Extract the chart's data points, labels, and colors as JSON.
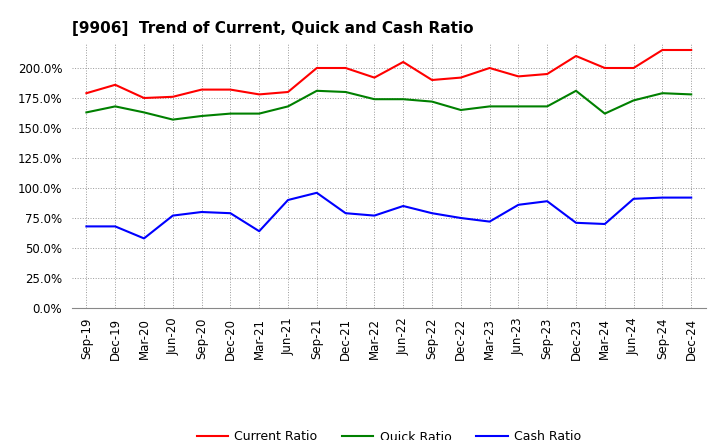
{
  "title": "[9906]  Trend of Current, Quick and Cash Ratio",
  "x_labels": [
    "Sep-19",
    "Dec-19",
    "Mar-20",
    "Jun-20",
    "Sep-20",
    "Dec-20",
    "Mar-21",
    "Jun-21",
    "Sep-21",
    "Dec-21",
    "Mar-22",
    "Jun-22",
    "Sep-22",
    "Dec-22",
    "Mar-23",
    "Jun-23",
    "Sep-23",
    "Dec-23",
    "Mar-24",
    "Jun-24",
    "Sep-24",
    "Dec-24"
  ],
  "current_ratio": [
    179,
    186,
    175,
    176,
    182,
    182,
    178,
    180,
    200,
    200,
    192,
    205,
    190,
    192,
    200,
    193,
    195,
    210,
    200,
    200,
    215,
    215
  ],
  "quick_ratio": [
    163,
    168,
    163,
    157,
    160,
    162,
    162,
    168,
    181,
    180,
    174,
    174,
    172,
    165,
    168,
    168,
    168,
    181,
    162,
    173,
    179,
    178
  ],
  "cash_ratio": [
    68,
    68,
    58,
    77,
    80,
    79,
    64,
    90,
    96,
    79,
    77,
    85,
    79,
    75,
    72,
    86,
    89,
    71,
    70,
    91,
    92,
    92
  ],
  "current_color": "#FF0000",
  "quick_color": "#008000",
  "cash_color": "#0000FF",
  "ylim": [
    0,
    220
  ],
  "yticks": [
    0,
    25,
    50,
    75,
    100,
    125,
    150,
    175,
    200
  ],
  "background_color": "#FFFFFF",
  "grid_color": "#999999",
  "title_fontsize": 11,
  "legend_fontsize": 9,
  "tick_fontsize": 8.5
}
